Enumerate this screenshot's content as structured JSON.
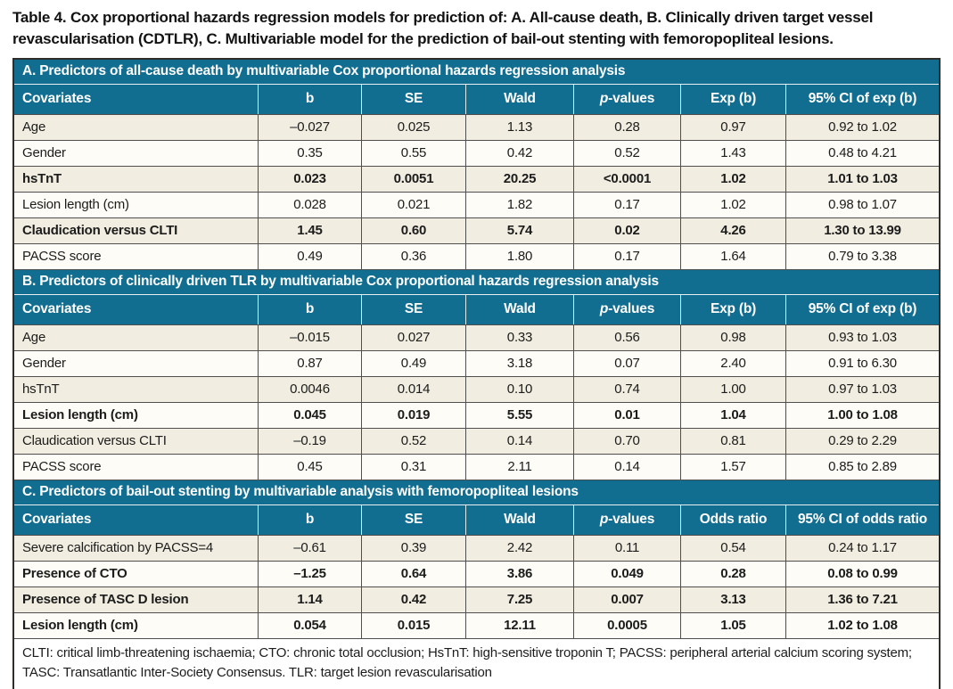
{
  "colors": {
    "header_teal": "#116e90",
    "row_beige": "#f1ede0",
    "row_white": "#fdfcf6",
    "grid_line": "#4f4f4f",
    "outer_border": "#2e2d2c"
  },
  "title": "Table 4. Cox proportional hazards regression models for prediction of: A. All-cause death, B. Clinically driven target vessel revascularisation (CDTLR), C. Multivariable model for the prediction of bail-out stenting with femoropopliteal lesions.",
  "sections": [
    {
      "id": "A",
      "title": "A. Predictors of all-cause death by multivariable Cox proportional hazards regression analysis",
      "columns": [
        {
          "label": "Covariates",
          "align": "left"
        },
        {
          "label": "b"
        },
        {
          "label": "SE"
        },
        {
          "label": "Wald"
        },
        {
          "label": "p-values",
          "italic_prefix": 1
        },
        {
          "label": "Exp (b)"
        },
        {
          "label": "95% CI of exp (b)"
        }
      ],
      "rows": [
        {
          "bold": false,
          "cells": [
            "Age",
            "–0.027",
            "0.025",
            "1.13",
            "0.28",
            "0.97",
            "0.92 to 1.02"
          ]
        },
        {
          "bold": false,
          "cells": [
            "Gender",
            "0.35",
            "0.55",
            "0.42",
            "0.52",
            "1.43",
            "0.48 to 4.21"
          ]
        },
        {
          "bold": true,
          "cells": [
            "hsTnT",
            "0.023",
            "0.0051",
            "20.25",
            "<0.0001",
            "1.02",
            "1.01 to 1.03"
          ]
        },
        {
          "bold": false,
          "cells": [
            "Lesion length (cm)",
            "0.028",
            "0.021",
            "1.82",
            "0.17",
            "1.02",
            "0.98 to 1.07"
          ]
        },
        {
          "bold": true,
          "cells": [
            "Claudication versus CLTI",
            "1.45",
            "0.60",
            "5.74",
            "0.02",
            "4.26",
            "1.30 to 13.99"
          ]
        },
        {
          "bold": false,
          "cells": [
            "PACSS score",
            "0.49",
            "0.36",
            "1.80",
            "0.17",
            "1.64",
            "0.79 to 3.38"
          ]
        }
      ]
    },
    {
      "id": "B",
      "title": "B. Predictors of clinically driven TLR by multivariable Cox proportional hazards regression analysis",
      "columns": [
        {
          "label": "Covariates",
          "align": "left"
        },
        {
          "label": "b"
        },
        {
          "label": "SE"
        },
        {
          "label": "Wald"
        },
        {
          "label": "p-values",
          "italic_prefix": 1
        },
        {
          "label": "Exp (b)"
        },
        {
          "label": "95% CI of exp (b)"
        }
      ],
      "rows": [
        {
          "bold": false,
          "cells": [
            "Age",
            "–0.015",
            "0.027",
            "0.33",
            "0.56",
            "0.98",
            "0.93 to 1.03"
          ]
        },
        {
          "bold": false,
          "cells": [
            "Gender",
            "0.87",
            "0.49",
            "3.18",
            "0.07",
            "2.40",
            "0.91 to 6.30"
          ]
        },
        {
          "bold": false,
          "cells": [
            "hsTnT",
            "0.0046",
            "0.014",
            "0.10",
            "0.74",
            "1.00",
            "0.97 to 1.03"
          ]
        },
        {
          "bold": true,
          "cells": [
            "Lesion length (cm)",
            "0.045",
            "0.019",
            "5.55",
            "0.01",
            "1.04",
            "1.00 to 1.08"
          ]
        },
        {
          "bold": false,
          "cells": [
            "Claudication versus CLTI",
            "–0.19",
            "0.52",
            "0.14",
            "0.70",
            "0.81",
            "0.29 to 2.29"
          ]
        },
        {
          "bold": false,
          "cells": [
            "PACSS score",
            "0.45",
            "0.31",
            "2.11",
            "0.14",
            "1.57",
            "0.85 to 2.89"
          ]
        }
      ]
    },
    {
      "id": "C",
      "title": "C. Predictors of bail-out stenting by multivariable analysis with femoropopliteal lesions",
      "columns": [
        {
          "label": "Covariates",
          "align": "left"
        },
        {
          "label": "b"
        },
        {
          "label": "SE"
        },
        {
          "label": "Wald"
        },
        {
          "label": "p-values",
          "italic_prefix": 1
        },
        {
          "label": "Odds ratio"
        },
        {
          "label": "95% CI of odds ratio"
        }
      ],
      "rows": [
        {
          "bold": false,
          "cells": [
            "Severe calcification by PACSS=4",
            "–0.61",
            "0.39",
            "2.42",
            "0.11",
            "0.54",
            "0.24 to 1.17"
          ]
        },
        {
          "bold": true,
          "cells": [
            "Presence of CTO",
            "–1.25",
            "0.64",
            "3.86",
            "0.049",
            "0.28",
            "0.08 to 0.99"
          ]
        },
        {
          "bold": true,
          "cells": [
            "Presence of TASC D lesion",
            "1.14",
            "0.42",
            "7.25",
            "0.007",
            "3.13",
            "1.36 to 7.21"
          ]
        },
        {
          "bold": true,
          "cells": [
            "Lesion length (cm)",
            "0.054",
            "0.015",
            "12.11",
            "0.0005",
            "1.05",
            "1.02 to 1.08"
          ]
        }
      ]
    }
  ],
  "footnote": "CLTI: critical limb-threatening ischaemia; CTO: chronic total occlusion; HsTnT: high-sensitive troponin T; PACSS: peripheral arterial calcium scoring system; TASC: Transatlantic Inter-Society Consensus. TLR: target lesion revascularisation"
}
